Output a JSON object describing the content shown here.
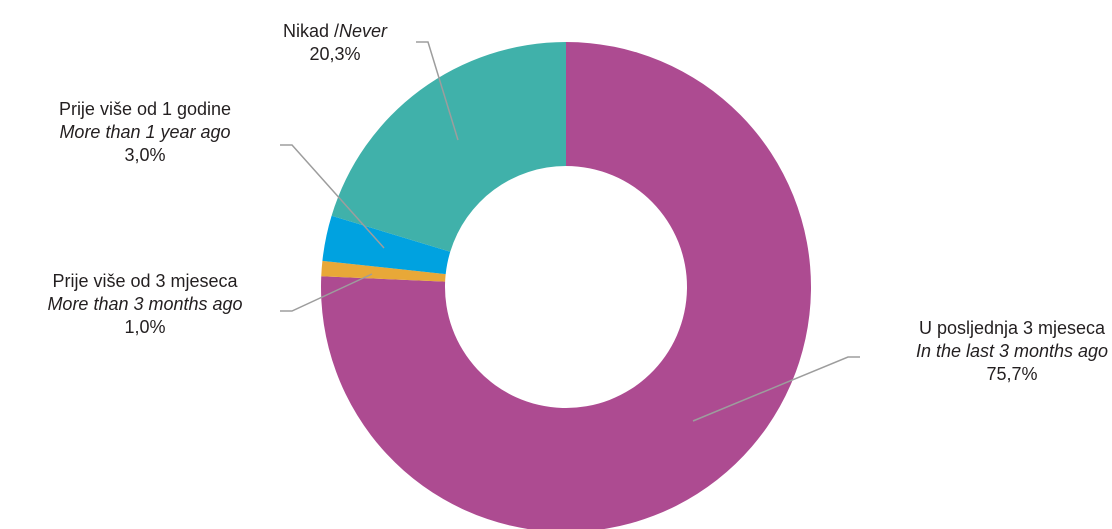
{
  "chart_data": {
    "type": "pie",
    "variant": "donut",
    "title": "",
    "categories": [
      "U posljednja 3 mjeseca / In the last 3 months ago",
      "Prije više od 3 mjeseca / More than 3 months ago",
      "Prije više od 1 godine / More than 1 year ago",
      "Nikad / Never"
    ],
    "values": [
      75.7,
      1.0,
      3.0,
      20.3
    ],
    "colors": [
      "#ad4b91",
      "#e8a838",
      "#00a2e0",
      "#40b1aa"
    ],
    "legend": "none",
    "labels": [
      {
        "line1": "U posljednja 3 mjeseca",
        "line2": "In the last 3 months ago",
        "pct": "75,7%"
      },
      {
        "line1": "Prije više od 3 mjeseca",
        "line2": "More than 3 months ago",
        "pct": "1,0%"
      },
      {
        "line1": "Prije više od 1 godine",
        "line2": "More than 1 year ago",
        "pct": "3,0%"
      },
      {
        "line1": "Nikad /",
        "line2": "Never",
        "pct": "20,3%"
      }
    ]
  }
}
